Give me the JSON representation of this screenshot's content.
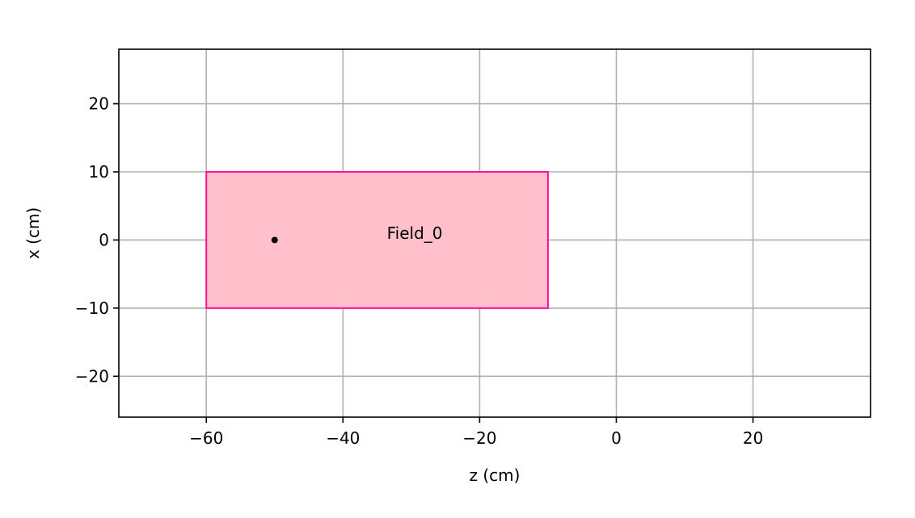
{
  "chart_data": {
    "type": "scatter",
    "title": "",
    "xlabel": "z (cm)",
    "ylabel": "x (cm)",
    "xlim": [
      -72.8,
      37.2
    ],
    "ylim": [
      -26,
      28
    ],
    "xticks": [
      -60,
      -40,
      -20,
      0,
      20
    ],
    "yticks": [
      -20,
      -10,
      0,
      10,
      20
    ],
    "xtick_labels": [
      "−60",
      "−40",
      "−20",
      "0",
      "20"
    ],
    "ytick_labels": [
      "−20",
      "−10",
      "0",
      "10",
      "20"
    ],
    "grid": true,
    "regions": [
      {
        "name": "Field_0",
        "z_range": [
          -60,
          -10
        ],
        "x_range": [
          -10,
          10
        ],
        "label_at": [
          -29.5,
          1
        ],
        "fill_color": "#ffc0cb",
        "edge_color": "#ff1493"
      }
    ],
    "points": [
      {
        "z": -50,
        "x": 0,
        "color": "#000000"
      }
    ],
    "colors": {
      "grid": "#b0b0b0",
      "axes": "#000000"
    }
  }
}
